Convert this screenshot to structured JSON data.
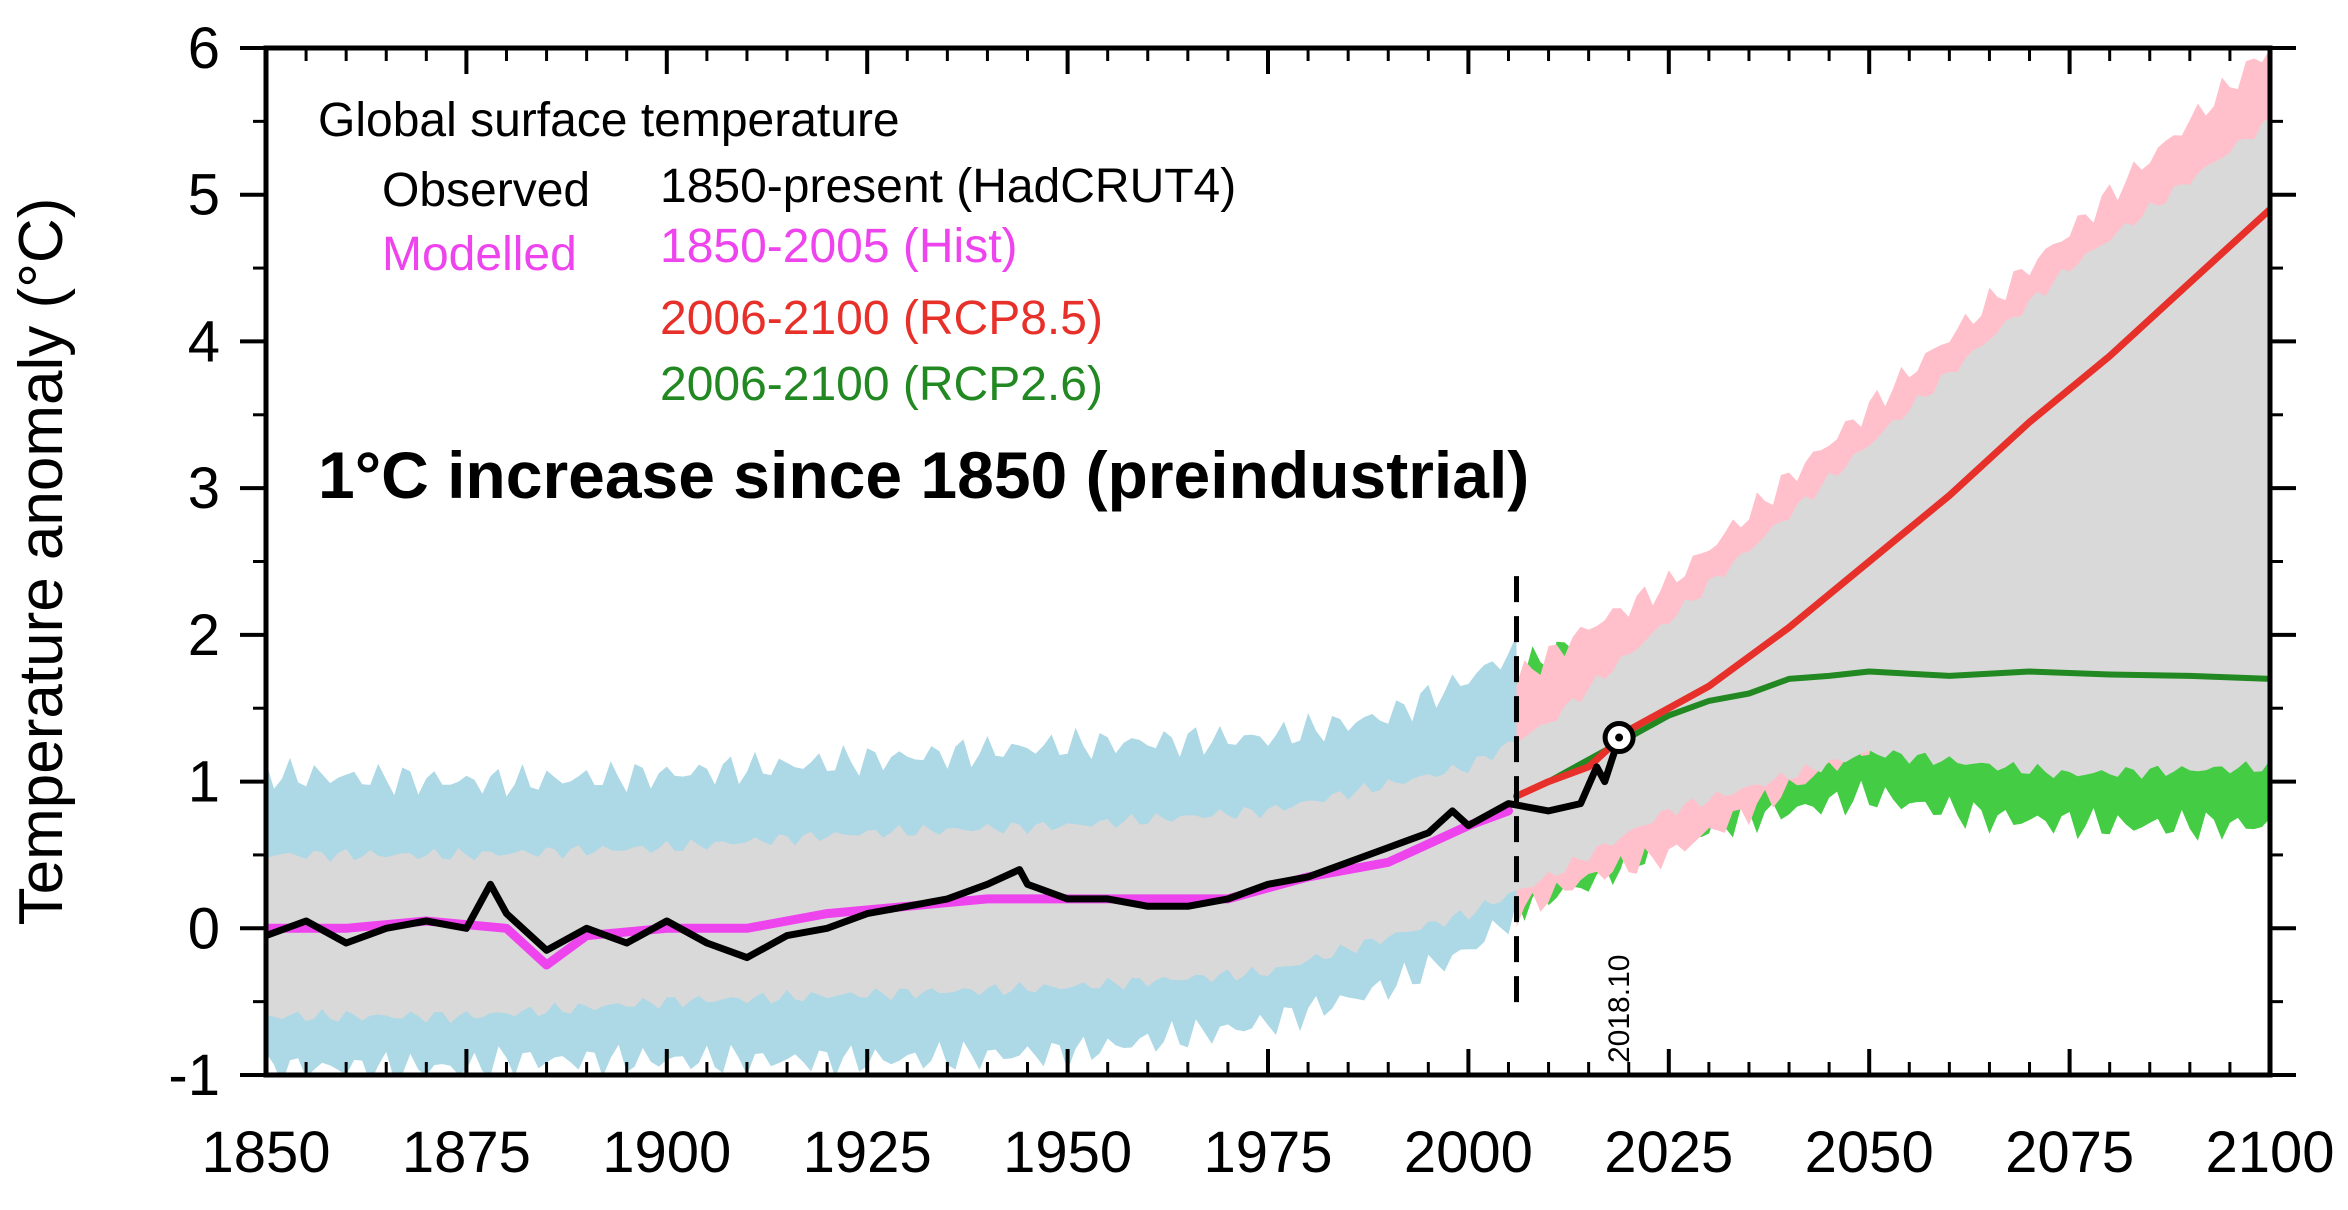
{
  "chart_data": {
    "type": "line",
    "ylabel": "Temperature anomaly (°C)",
    "xlim": [
      1850,
      2100
    ],
    "ylim": [
      -1,
      6
    ],
    "x_ticks": [
      "1850",
      "1875",
      "1900",
      "1925",
      "1950",
      "1975",
      "2000",
      "2025",
      "2050",
      "2075",
      "2100"
    ],
    "y_ticks": [
      "-1",
      "0",
      "1",
      "2",
      "3",
      "4",
      "5",
      "6"
    ],
    "legend": {
      "title": "Global surface temperature",
      "observed_label": "Observed",
      "observed_period": "1850-present (HadCRUT4)",
      "modelled_label": "Modelled",
      "hist_period": "1850-2005 (Hist)",
      "rcp85_period": "2006-2100 (RCP8.5)",
      "rcp26_period": "2006-2100 (RCP2.6)",
      "placement": "top-left"
    },
    "annotation": "1°C increase since 1850 (preindustrial)",
    "divider_year": 2006,
    "marker": {
      "label": "2018.10",
      "x": 2018.8,
      "y": 1.3
    },
    "colors": {
      "observed": "#000000",
      "hist": "#ee44ee",
      "rcp85": "#e8302a",
      "rcp26": "#228822",
      "rcp85_band": "#ffc0cb",
      "rcp26_band": "#44cc44",
      "hist_band": "#add8e6",
      "inner_band": "#d9d9d9"
    },
    "series": [
      {
        "name": "Observed",
        "x": [
          1850,
          1855,
          1860,
          1865,
          1870,
          1875,
          1878,
          1880,
          1885,
          1890,
          1895,
          1900,
          1905,
          1910,
          1915,
          1920,
          1925,
          1930,
          1935,
          1940,
          1944,
          1945,
          1950,
          1955,
          1960,
          1965,
          1970,
          1975,
          1980,
          1985,
          1990,
          1995,
          1998,
          2000,
          2005,
          2010,
          2014,
          2016,
          2017,
          2018.8
        ],
        "y": [
          -0.05,
          0.05,
          -0.1,
          0.0,
          0.05,
          0.0,
          0.3,
          0.1,
          -0.15,
          0.0,
          -0.1,
          0.05,
          -0.1,
          -0.2,
          -0.05,
          0.0,
          0.1,
          0.15,
          0.2,
          0.3,
          0.4,
          0.3,
          0.2,
          0.2,
          0.15,
          0.15,
          0.2,
          0.3,
          0.35,
          0.45,
          0.55,
          0.65,
          0.8,
          0.7,
          0.85,
          0.8,
          0.85,
          1.1,
          1.0,
          1.3
        ]
      },
      {
        "name": "1850-2005 (Hist)",
        "x": [
          1850,
          1860,
          1870,
          1880,
          1885,
          1890,
          1900,
          1910,
          1920,
          1930,
          1940,
          1950,
          1960,
          1970,
          1980,
          1990,
          2000,
          2005
        ],
        "y": [
          0.0,
          0.0,
          0.05,
          0.0,
          -0.25,
          -0.05,
          0.0,
          0.0,
          0.1,
          0.15,
          0.2,
          0.2,
          0.2,
          0.2,
          0.35,
          0.45,
          0.7,
          0.8
        ]
      },
      {
        "name": "2006-2100 (RCP8.5)",
        "x": [
          2006,
          2010,
          2015,
          2020,
          2030,
          2040,
          2050,
          2060,
          2070,
          2080,
          2090,
          2100
        ],
        "y": [
          0.9,
          1.0,
          1.1,
          1.35,
          1.65,
          2.05,
          2.5,
          2.95,
          3.45,
          3.9,
          4.4,
          4.9
        ]
      },
      {
        "name": "2006-2100 (RCP2.6)",
        "x": [
          2006,
          2010,
          2015,
          2020,
          2025,
          2030,
          2035,
          2040,
          2045,
          2050,
          2060,
          2070,
          2080,
          2090,
          2100
        ],
        "y": [
          0.9,
          1.0,
          1.15,
          1.3,
          1.45,
          1.55,
          1.6,
          1.7,
          1.72,
          1.75,
          1.72,
          1.75,
          1.73,
          1.72,
          1.7
        ]
      }
    ],
    "bands": [
      {
        "name": "Hist outer",
        "x": [
          1850,
          1875,
          1880,
          1900,
          1925,
          1950,
          1975,
          1990,
          2000,
          2006
        ],
        "y_low": [
          -0.95,
          -0.95,
          -0.9,
          -0.9,
          -0.9,
          -0.85,
          -0.65,
          -0.4,
          -0.15,
          0.1
        ],
        "y_high": [
          1.05,
          1.0,
          1.0,
          1.05,
          1.15,
          1.25,
          1.3,
          1.45,
          1.7,
          1.9
        ]
      },
      {
        "name": "RCP8.5 outer",
        "x": [
          2006,
          2015,
          2025,
          2050,
          2075,
          2100
        ],
        "y_low": [
          0.1,
          0.35,
          0.5,
          1.25,
          2.45,
          3.65
        ],
        "y_high": [
          1.7,
          2.05,
          2.35,
          3.55,
          4.75,
          6.0
        ]
      },
      {
        "name": "RCP2.6 outer",
        "x": [
          2006,
          2015,
          2025,
          2035,
          2050,
          2065,
          2080,
          2100
        ],
        "y_low": [
          0.15,
          0.3,
          0.6,
          0.75,
          0.9,
          0.75,
          0.7,
          0.7
        ],
        "y_high": [
          1.75,
          2.0,
          2.05,
          2.2,
          2.45,
          2.5,
          2.45,
          2.4
        ]
      },
      {
        "name": "Inner grey",
        "x": [
          1850,
          1875,
          1900,
          1925,
          1950,
          1975,
          2000,
          2010,
          2025,
          2050,
          2075,
          2100
        ],
        "y_low": [
          -0.6,
          -0.6,
          -0.5,
          -0.45,
          -0.4,
          -0.3,
          0.1,
          0.35,
          0.8,
          1.2,
          1.05,
          1.1
        ],
        "y_high": [
          0.5,
          0.5,
          0.55,
          0.65,
          0.7,
          0.8,
          1.1,
          1.4,
          2.1,
          3.3,
          4.5,
          5.5
        ]
      }
    ]
  }
}
